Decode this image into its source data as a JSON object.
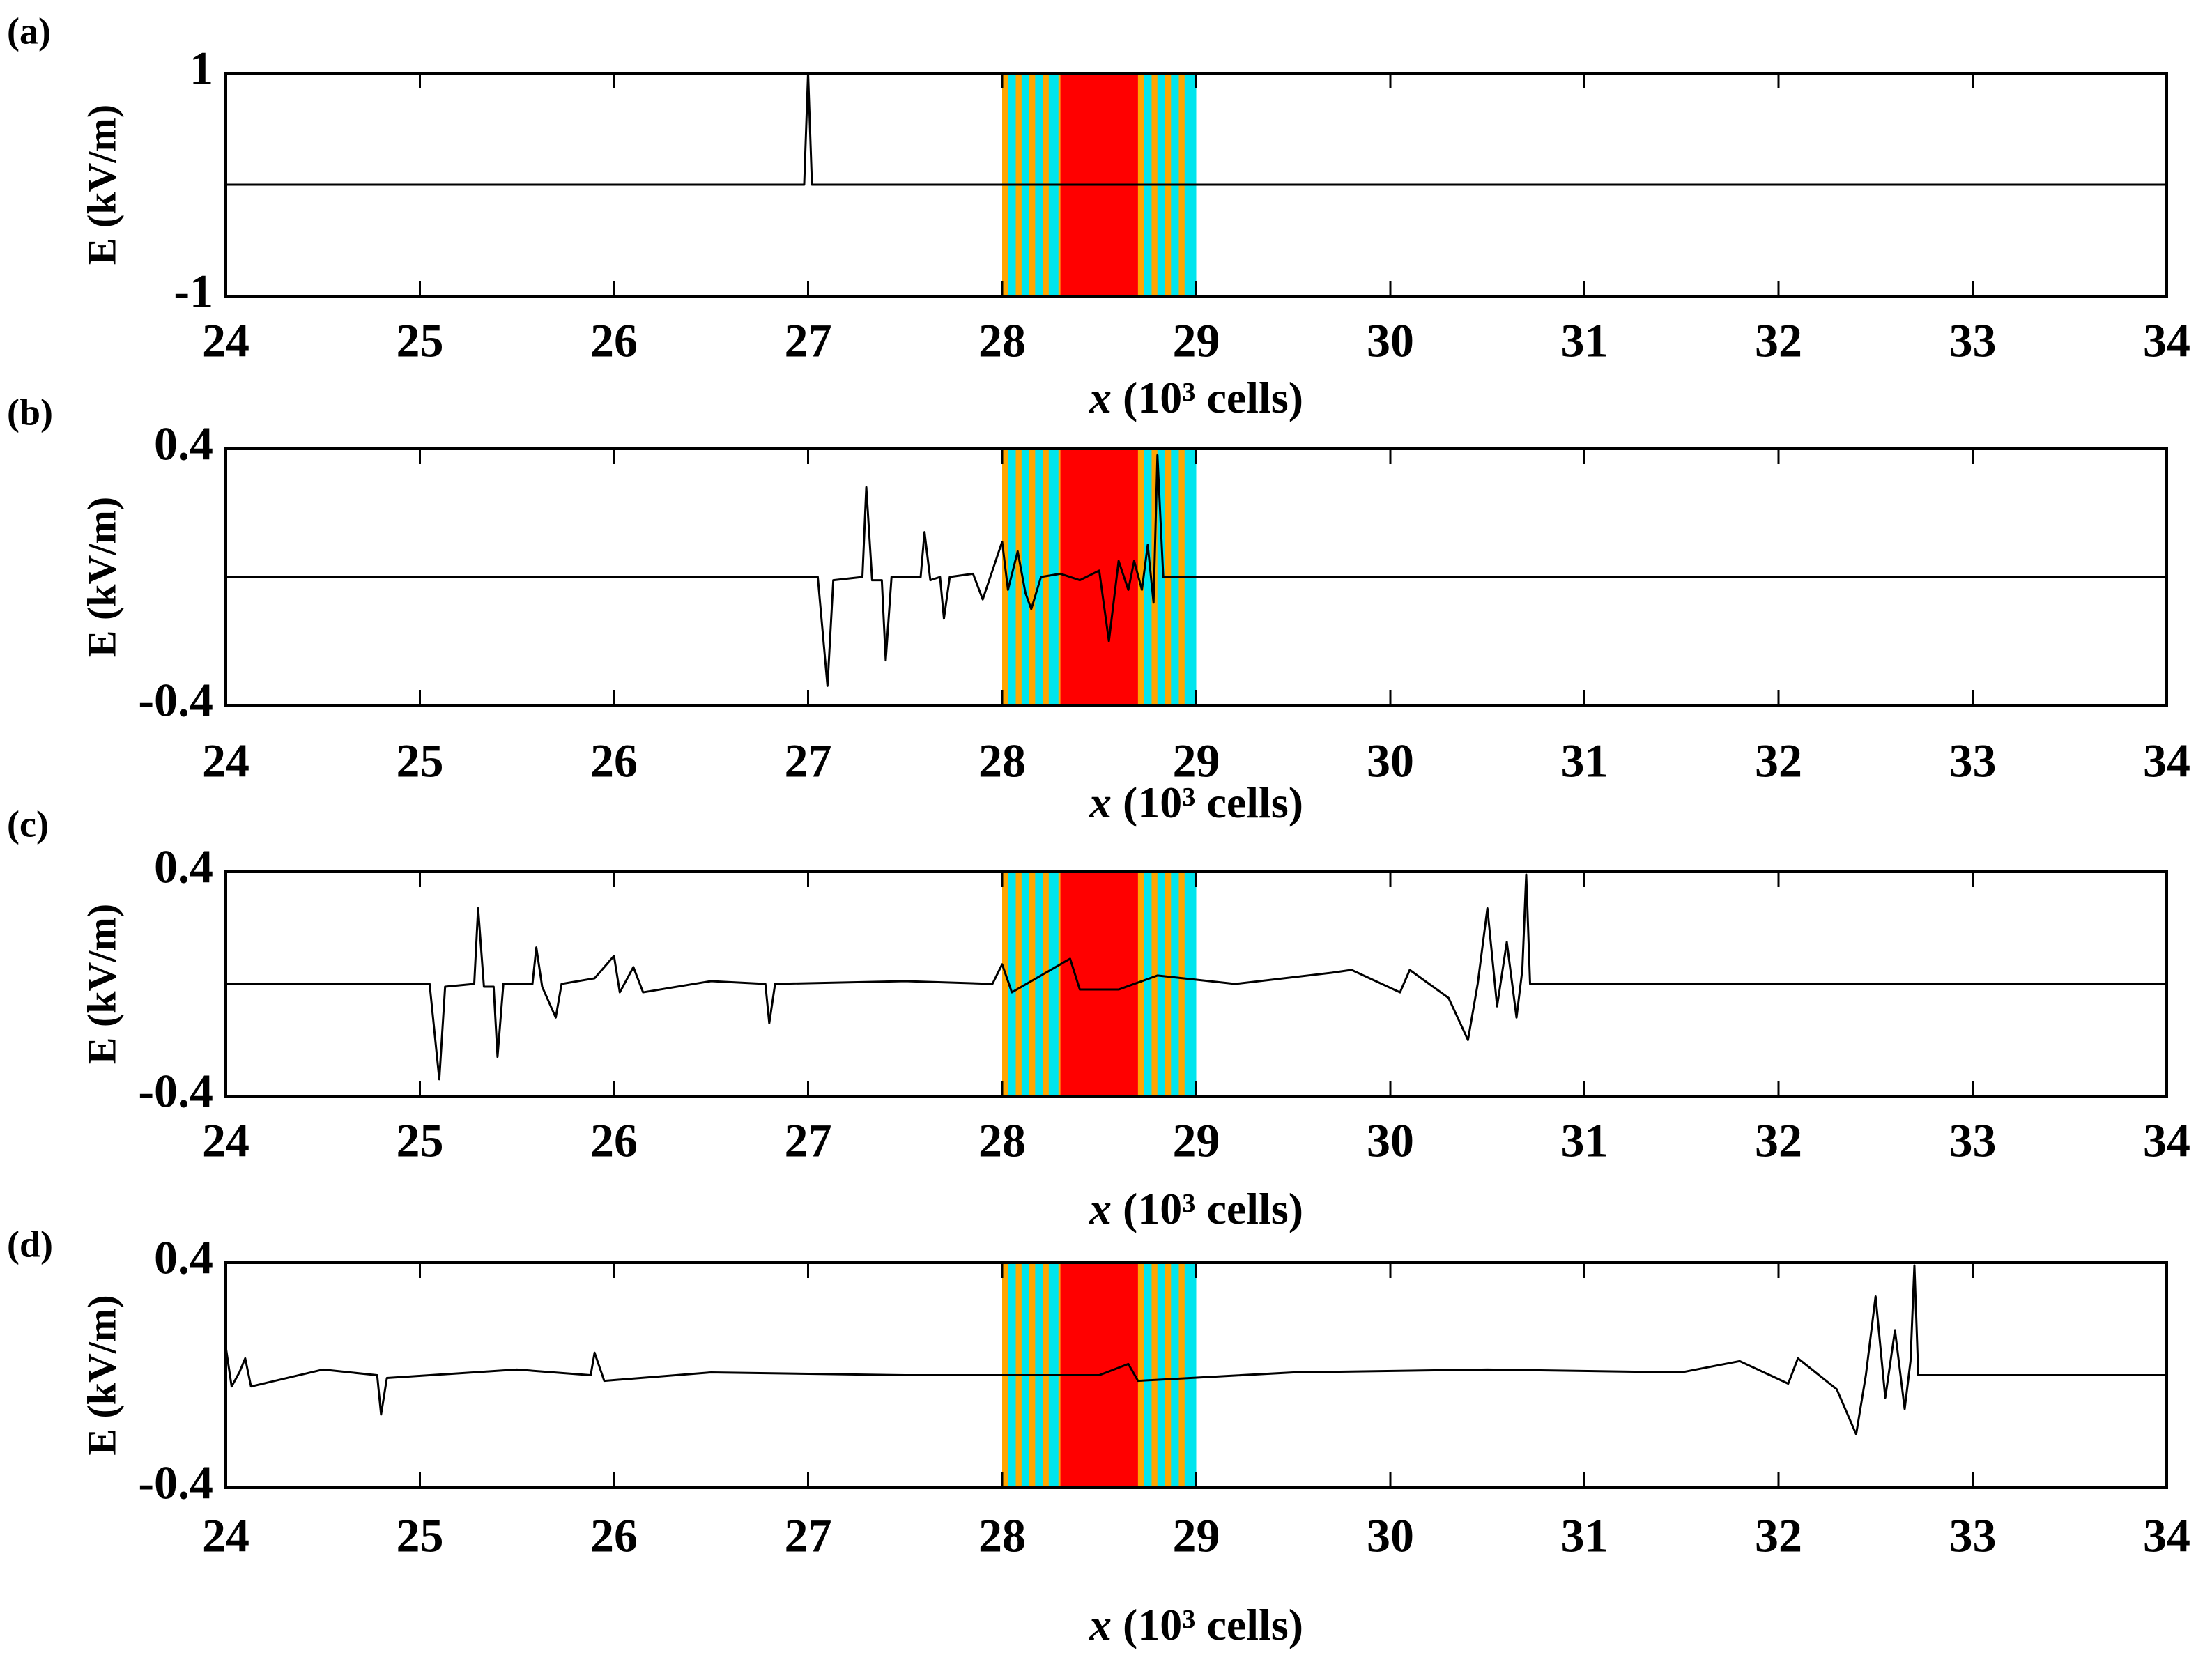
{
  "chart_data": [
    {
      "type": "line",
      "panel_label": "(a)",
      "ylabel": "E (kV/m)",
      "xlabel_var": "x",
      "xlabel_unit": "(10³ cells)",
      "color": "#000000",
      "xlim": [
        24,
        34
      ],
      "xticks": [
        24,
        25,
        26,
        27,
        28,
        29,
        30,
        31,
        32,
        33,
        34
      ],
      "ylim": [
        -1,
        1
      ],
      "yticks": [
        -1,
        1
      ],
      "x": [
        24,
        26.98,
        27.0,
        27.02,
        34
      ],
      "values": [
        0,
        0,
        1,
        0,
        0
      ]
    },
    {
      "type": "line",
      "panel_label": "(b)",
      "ylabel": "E (kV/m)",
      "xlabel_var": "x",
      "xlabel_unit": "(10³ cells)",
      "color": "#000000",
      "xlim": [
        24,
        34
      ],
      "xticks": [
        24,
        25,
        26,
        27,
        28,
        29,
        30,
        31,
        32,
        33,
        34
      ],
      "ylim": [
        -0.4,
        0.4
      ],
      "yticks": [
        -0.4,
        0.4
      ],
      "x": [
        24,
        27.05,
        27.1,
        27.13,
        27.28,
        27.3,
        27.33,
        27.38,
        27.4,
        27.43,
        27.58,
        27.6,
        27.63,
        27.68,
        27.7,
        27.73,
        27.85,
        27.9,
        27.95,
        28.0,
        28.03,
        28.08,
        28.12,
        28.15,
        28.2,
        28.3,
        28.4,
        28.5,
        28.55,
        28.6,
        28.65,
        28.68,
        28.72,
        28.75,
        28.78,
        28.8,
        28.83,
        34
      ],
      "values": [
        0,
        0,
        -0.34,
        -0.01,
        0,
        0.28,
        -0.01,
        -0.01,
        -0.26,
        0,
        0,
        0.14,
        -0.01,
        0,
        -0.13,
        0,
        0.01,
        -0.07,
        0.02,
        0.11,
        -0.04,
        0.08,
        -0.05,
        -0.1,
        0,
        0.01,
        -0.01,
        0.02,
        -0.2,
        0.05,
        -0.04,
        0.05,
        -0.04,
        0.1,
        -0.08,
        0.38,
        0,
        0
      ]
    },
    {
      "type": "line",
      "panel_label": "(c)",
      "ylabel": "E (kV/m)",
      "xlabel_var": "x",
      "xlabel_unit": "(10³ cells)",
      "color": "#000000",
      "xlim": [
        24,
        34
      ],
      "xticks": [
        24,
        25,
        26,
        27,
        28,
        29,
        30,
        31,
        32,
        33,
        34
      ],
      "ylim": [
        -0.4,
        0.4
      ],
      "yticks": [
        -0.4,
        0.4
      ],
      "x": [
        24,
        25.05,
        25.1,
        25.13,
        25.28,
        25.3,
        25.33,
        25.38,
        25.4,
        25.43,
        25.58,
        25.6,
        25.63,
        25.7,
        25.73,
        25.9,
        26.0,
        26.03,
        26.1,
        26.15,
        26.5,
        26.78,
        26.8,
        26.83,
        27.5,
        27.95,
        28.0,
        28.05,
        28.2,
        28.35,
        28.4,
        28.6,
        28.8,
        29.2,
        29.7,
        29.8,
        30.05,
        30.1,
        30.3,
        30.4,
        30.45,
        30.5,
        30.55,
        30.6,
        30.65,
        30.68,
        30.7,
        30.72,
        34
      ],
      "values": [
        0,
        0,
        -0.34,
        -0.01,
        0,
        0.27,
        -0.01,
        -0.01,
        -0.26,
        0,
        0,
        0.13,
        -0.01,
        -0.12,
        0,
        0.02,
        0.1,
        -0.03,
        0.06,
        -0.03,
        0.01,
        0,
        -0.14,
        0,
        0.01,
        0,
        0.07,
        -0.03,
        0.03,
        0.09,
        -0.02,
        -0.02,
        0.03,
        0,
        0.04,
        0.05,
        -0.03,
        0.05,
        -0.05,
        -0.2,
        0,
        0.27,
        -0.08,
        0.15,
        -0.12,
        0.05,
        0.39,
        0,
        0
      ]
    },
    {
      "type": "line",
      "panel_label": "(d)",
      "ylabel": "E (kV/m)",
      "xlabel_var": "x",
      "xlabel_unit": "(10³ cells)",
      "color": "#000000",
      "xlim": [
        24,
        34
      ],
      "xticks": [
        24,
        25,
        26,
        27,
        28,
        29,
        30,
        31,
        32,
        33,
        34
      ],
      "ylim": [
        -0.4,
        0.4
      ],
      "yticks": [
        -0.4,
        0.4
      ],
      "x": [
        24,
        24.03,
        24.07,
        24.1,
        24.13,
        24.5,
        24.78,
        24.8,
        24.83,
        25.5,
        25.88,
        25.9,
        25.95,
        26.5,
        27.5,
        28.5,
        28.65,
        28.7,
        29.5,
        30.5,
        31.5,
        31.8,
        32.05,
        32.1,
        32.3,
        32.4,
        32.45,
        32.5,
        32.55,
        32.6,
        32.65,
        32.68,
        32.7,
        32.72,
        34
      ],
      "values": [
        0.1,
        -0.04,
        0.01,
        0.06,
        -0.04,
        0.02,
        0,
        -0.14,
        -0.01,
        0.02,
        0,
        0.08,
        -0.02,
        0.01,
        0,
        0,
        0.04,
        -0.02,
        0.01,
        0.02,
        0.01,
        0.05,
        -0.03,
        0.06,
        -0.05,
        -0.21,
        0,
        0.28,
        -0.08,
        0.16,
        -0.12,
        0.05,
        0.39,
        0,
        0
      ]
    }
  ],
  "regions": [
    {
      "x0": 28.0,
      "x1": 28.3,
      "color": "#ffa500"
    },
    {
      "x0": 28.03,
      "x1": 28.07,
      "color": "#00e5ee"
    },
    {
      "x0": 28.1,
      "x1": 28.14,
      "color": "#00e5ee"
    },
    {
      "x0": 28.17,
      "x1": 28.21,
      "color": "#00e5ee"
    },
    {
      "x0": 28.24,
      "x1": 28.29,
      "color": "#00e5ee"
    },
    {
      "x0": 28.3,
      "x1": 28.7,
      "color": "#ff0000"
    },
    {
      "x0": 28.7,
      "x1": 29.0,
      "color": "#ffa500"
    },
    {
      "x0": 28.73,
      "x1": 28.77,
      "color": "#00e5ee"
    },
    {
      "x0": 28.8,
      "x1": 28.84,
      "color": "#00e5ee"
    },
    {
      "x0": 28.87,
      "x1": 28.91,
      "color": "#00e5ee"
    },
    {
      "x0": 28.94,
      "x1": 29.0,
      "color": "#00e5ee"
    }
  ]
}
